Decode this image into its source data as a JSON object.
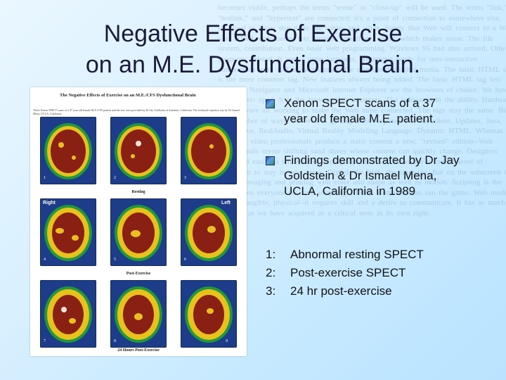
{
  "slide": {
    "title_line1": "Negative Effects of Exercise",
    "title_line2": "on an M.E. Dysfunctional Brain."
  },
  "figure": {
    "heading": "The Negative Effects of Exercise on an M.E./CFS Dysfunctional Brain",
    "caption": "These Xenon SPECT scans of a 37 year old female M.E./CFS patient and the text were provided by Dr Jay Goldstein of Anaheim, California. The technical expertise was by Dr Ismael Mena, UCLA, California.",
    "scan_numbers": [
      "1",
      "2",
      "3",
      "4",
      "5",
      "6",
      "7",
      "8",
      "9"
    ],
    "row_labels": [
      "Resting",
      "Post-Exercise",
      "24 Hours Post-Exercise"
    ],
    "side_left": "Right",
    "side_right": "Left"
  },
  "bullets": [
    {
      "text": "Xenon SPECT scans of a 37 year old  female M.E. patient."
    },
    {
      "text": " Findings demonstrated by Dr Jay Goldstein & Dr Ismael Mena, UCLA, California in 1989"
    }
  ],
  "numbered_list": [
    {
      "n": "1:",
      "text": "Abnormal resting SPECT"
    },
    {
      "n": "2:",
      "text": "Post-exercise SPECT"
    },
    {
      "n": "3:",
      "text": "24 hr post-exercise"
    }
  ],
  "background_text": "becomes viable, perhaps the terms \"scene\" or \"close-up\" will be used. The terms \"link,\" \"hotlink,\" and \"hypertext\" are connected; it's a point of connection to somewhere else. It's good to know that there are cables and wires. Surely that Web will connect to a Web site. HTML documents, text, images, sound and video, which makes sense. The file system, contribution. Even basic web programming. Windows 95 had also arrived. Other programs existed. It was a great language, documents ready for user-interactive components were still in development for user-based graphic media. The basic HTML tag is the most common tag. New features always being added. The basic HTML tag lets Netscape Navigator and Microsoft Internet Explorer are the browsers of choice. We have been devel- oped. It is the browser that interprets. The software's in the ability. Hardware and software all working to make the Web more connected. The tags stay the same. But in a number of ways, the Web is getting more responsive to the client. Updates, Java, Shockwave, RealAudio, Virtual Reality Modeling Language. Dynamic HTML. Whereas print and video professionals produce a static content a new, \"revised\" edition--Web professionals create shifting sand dunes whose content can quickly change. Designers who need easily, a tendency of Web programmers to strive for a certain level of innovation to stay in new terms. Digital, the Web, the language. But on the subscreen it is seen. Imaging and printing with color and shape as well as motion. Scripting is the new. When everyone it's Java scripting, CIF89a animation can run the game. Web media. Not be tangible, physical--it requires skill and a desire to communicate. It has as much meaning as we have acquired as a critical term in its own right."
}
